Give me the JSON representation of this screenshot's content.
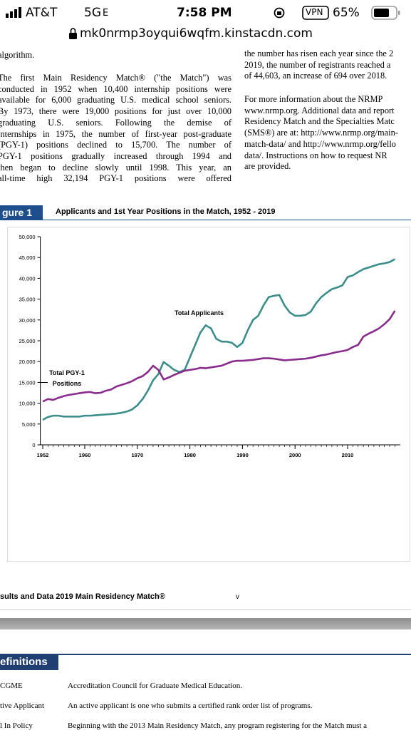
{
  "status_bar": {
    "carrier": "AT&T",
    "network": "5G",
    "network_suffix": "E",
    "time": "7:58 PM",
    "vpn": "VPN",
    "battery": "65%"
  },
  "address_bar": {
    "url": "mk0nrmp3oyqui6wqfm.kinstacdn.com"
  },
  "document": {
    "left_column": {
      "continuation": "algorithm.",
      "paragraph": [
        "The first Main Residency Match® (\"the Match\") was",
        "conducted in 1952 when 10,400 internship positions were",
        "available for 6,000 graduating U.S. medical school seniors.",
        "By 1973, there were 19,000 positions for just over 10,000",
        "graduating U.S. seniors. Following the demise of",
        "internships in 1975, the number of first-year post-graduate",
        "(PGY-1) positions declined to 15,700. The number of",
        "PGY-1 positions gradually increased through 1994 and",
        "then began to decline slowly until 1998. This year, an",
        "all-time high 32,194 PGY-1 positions were offered"
      ]
    },
    "right_column": {
      "continuation": [
        "the number has risen each year since the 2",
        "2019, the number of registrants reached a",
        "of 44,603, an increase of 694 over 2018."
      ],
      "paragraph": [
        "For more information about the NRMP",
        "www.nrmp.org. Additional data and report",
        "Residency Match and the Specialties Matc",
        "(SMS®) are at: http://www.nrmp.org/main-",
        "match-data/ and http://www.nrmp.org/fello",
        "data/. Instructions on how to request NR",
        "are provided."
      ]
    }
  },
  "figure": {
    "label": "gure 1",
    "title": "Applicants and 1st Year Positions in the Match, 1952 - 2019"
  },
  "chart_data": {
    "type": "line",
    "x": [
      1952,
      1953,
      1954,
      1955,
      1956,
      1957,
      1958,
      1959,
      1960,
      1961,
      1962,
      1963,
      1964,
      1965,
      1966,
      1967,
      1968,
      1969,
      1970,
      1971,
      1972,
      1973,
      1974,
      1975,
      1976,
      1977,
      1978,
      1979,
      1980,
      1981,
      1982,
      1983,
      1984,
      1985,
      1986,
      1987,
      1988,
      1989,
      1990,
      1991,
      1992,
      1993,
      1994,
      1995,
      1996,
      1997,
      1998,
      1999,
      2000,
      2001,
      2002,
      2003,
      2004,
      2005,
      2006,
      2007,
      2008,
      2009,
      2010,
      2011,
      2012,
      2013,
      2014,
      2015,
      2016,
      2017,
      2018,
      2019
    ],
    "series": [
      {
        "name": "Total Applicants",
        "color": "#3b8e8b",
        "values": [
          6000,
          6700,
          7000,
          7000,
          6800,
          6800,
          6800,
          6800,
          7000,
          7000,
          7100,
          7200,
          7300,
          7400,
          7500,
          7700,
          8000,
          8500,
          9500,
          11000,
          13000,
          15500,
          17000,
          19900,
          19000,
          18000,
          17500,
          18000,
          21000,
          24000,
          27000,
          28700,
          28000,
          25500,
          24800,
          24800,
          24500,
          23500,
          24500,
          27500,
          30000,
          31000,
          33500,
          35500,
          35800,
          36000,
          33500,
          31800,
          31000,
          31000,
          31200,
          32000,
          34000,
          35500,
          36500,
          37400,
          37800,
          38300,
          40300,
          40700,
          41500,
          42200,
          42600,
          43000,
          43400,
          43600,
          43909,
          44603
        ]
      },
      {
        "name": "Total PGY-1 Positions",
        "color": "#8a2c8e",
        "values": [
          10400,
          11000,
          10800,
          11300,
          11700,
          12000,
          12200,
          12400,
          12600,
          12700,
          12400,
          12500,
          13000,
          13300,
          14000,
          14400,
          14800,
          15300,
          16000,
          16500,
          17500,
          19000,
          18000,
          15700,
          16200,
          16800,
          17300,
          17800,
          18000,
          18200,
          18500,
          18400,
          18600,
          18800,
          19000,
          19500,
          20000,
          20200,
          20200,
          20300,
          20400,
          20600,
          20800,
          20800,
          20700,
          20500,
          20300,
          20400,
          20500,
          20600,
          20700,
          20900,
          21200,
          21500,
          21700,
          22000,
          22300,
          22500,
          22800,
          23500,
          24000,
          26000,
          26700,
          27300,
          28000,
          29000,
          30200,
          32194
        ]
      }
    ],
    "xlim": [
      1951,
      2020
    ],
    "ylim": [
      0,
      50000
    ],
    "xticks": [
      1952,
      1960,
      1970,
      1980,
      1990,
      2000,
      2010
    ],
    "yticks": [
      0,
      {
        "value": 5000,
        "label": "5,000"
      },
      {
        "value": 10000,
        "label": "10,000"
      },
      {
        "value": 15000,
        "label": "15,000"
      },
      {
        "value": 20000,
        "label": "20,000"
      },
      {
        "value": 25000,
        "label": "25,000"
      },
      {
        "value": 30000,
        "label": "30,000"
      },
      {
        "value": 35000,
        "label": "35,000"
      },
      {
        "value": 40000,
        "label": "40,000"
      },
      {
        "value": 45000,
        "label": "45,000"
      },
      {
        "value": 50000,
        "label": "50,000"
      }
    ],
    "grid": false
  },
  "footer": {
    "title": "sults and Data 2019 Main Residency Match®",
    "marker": "v"
  },
  "definitions": {
    "heading": "efinitions",
    "rows": [
      [
        "CGME",
        "Accreditation Council for Graduate Medical Education."
      ],
      [
        "tive Applicant",
        "An active applicant is one who submits a certified rank order list of programs."
      ],
      [
        "l In Policy",
        "Beginning with the 2013 Main Residency Match, any program registering for the Match must a"
      ]
    ]
  }
}
